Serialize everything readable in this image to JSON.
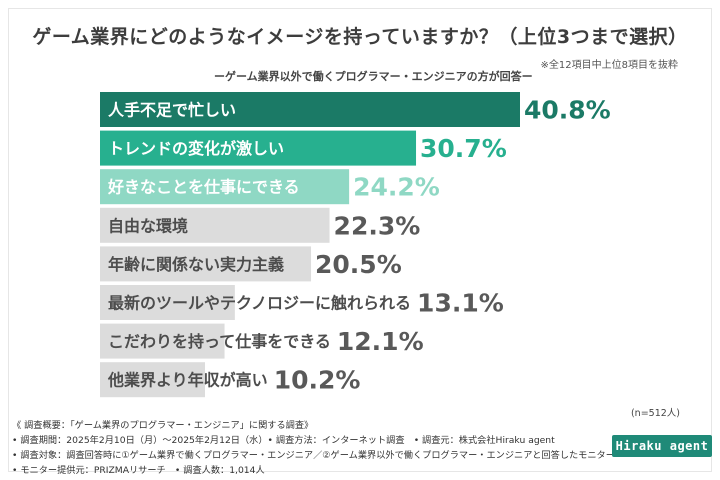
{
  "header": {
    "title": "ゲーム業界にどのようなイメージを持っていますか？（上位3つまで選択）",
    "note": "※全12項目中上位8項目を抜粋",
    "subtitle": "ーゲーム業界以外で働くプログラマー・エンジニアの方が回答ー"
  },
  "chart_data": {
    "type": "bar",
    "orientation": "horizontal",
    "title": "ゲーム業界にどのようなイメージを持っていますか？（上位3つまで選択）",
    "categories": [
      "人手不足で忙しい",
      "トレンドの変化が激しい",
      "好きなことを仕事にできる",
      "自由な環境",
      "年齢に関係ない実力主義",
      "最新のツールやテクノロジーに触れられる",
      "こだわりを持って仕事をできる",
      "他業界より年収が高い"
    ],
    "values": [
      40.8,
      30.7,
      24.2,
      22.3,
      20.5,
      13.1,
      12.1,
      10.2
    ],
    "value_labels": [
      "40.8%",
      "30.7%",
      "24.2%",
      "22.3%",
      "20.5%",
      "13.1%",
      "12.1%",
      "10.2%"
    ],
    "unit": "%",
    "xlim": [
      0,
      50
    ],
    "colors": {
      "rank1": "#1b7a66",
      "rank2": "#27b08f",
      "rank3": "#8fd8c4",
      "other": "#dcdcdc",
      "rank1_text": "#1b7a66",
      "rank2_text": "#27b08f",
      "rank3_text": "#8fd8c4",
      "other_text": "#595959",
      "label_highlight": "#ffffff",
      "label_other": "#4d4d4d"
    }
  },
  "sample": "(n=512人)",
  "footer": {
    "lines": [
      "《 調査概要：「ゲーム業界のプログラマー・エンジニア」に関する調査》",
      "• 調査期間：2025年2月10日（月）～2025年2月12日（水）• 調査方法：インターネット調査　• 調査元：株式会社Hiraku agent",
      "• 調査対象：調査回答時に①ゲーム業界で働くプログラマー・エンジニア／②ゲーム業界以外で働くプログラマー・エンジニアと回答したモニター",
      "• モニター提供元：PRIZMAリサーチ　• 調査人数：1,014人"
    ]
  },
  "logo": {
    "text": "Hiraku agent"
  }
}
